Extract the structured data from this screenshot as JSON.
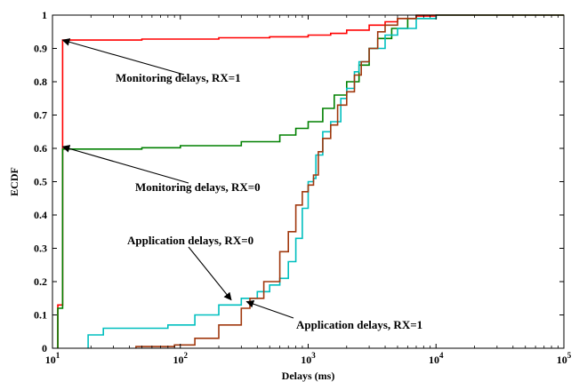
{
  "chart_data": {
    "type": "line",
    "xlabel": "Delays (ms)",
    "ylabel": "ECDF",
    "x_scale": "log",
    "xlim": [
      10,
      100000
    ],
    "ylim": [
      0,
      1
    ],
    "grid": false,
    "x_ticks": [
      {
        "value": 10,
        "base": "10",
        "exp": "1"
      },
      {
        "value": 100,
        "base": "10",
        "exp": "2"
      },
      {
        "value": 1000,
        "base": "10",
        "exp": "3"
      },
      {
        "value": 10000,
        "base": "10",
        "exp": "4"
      },
      {
        "value": 100000,
        "base": "10",
        "exp": "5"
      }
    ],
    "y_ticks": [
      "0",
      "0.1",
      "0.2",
      "0.3",
      "0.4",
      "0.5",
      "0.6",
      "0.7",
      "0.8",
      "0.9",
      "1"
    ],
    "series": [
      {
        "name": "Monitoring delays, RX=1",
        "color": "#ff0000",
        "points": [
          [
            11,
            0
          ],
          [
            11,
            0.13
          ],
          [
            12,
            0.13
          ],
          [
            12,
            0.925
          ],
          [
            50,
            0.928
          ],
          [
            200,
            0.932
          ],
          [
            500,
            0.935
          ],
          [
            1000,
            0.94
          ],
          [
            1500,
            0.945
          ],
          [
            2000,
            0.955
          ],
          [
            3000,
            0.97
          ],
          [
            4000,
            0.98
          ],
          [
            5000,
            0.99
          ],
          [
            7000,
            0.997
          ],
          [
            10000,
            1.0
          ],
          [
            100000,
            1.0
          ]
        ]
      },
      {
        "name": "Monitoring delays, RX=0",
        "color": "#008000",
        "points": [
          [
            11,
            0
          ],
          [
            11,
            0.12
          ],
          [
            12,
            0.12
          ],
          [
            12,
            0.598
          ],
          [
            50,
            0.602
          ],
          [
            100,
            0.608
          ],
          [
            300,
            0.62
          ],
          [
            600,
            0.64
          ],
          [
            800,
            0.66
          ],
          [
            1000,
            0.68
          ],
          [
            1300,
            0.72
          ],
          [
            1600,
            0.76
          ],
          [
            2000,
            0.8
          ],
          [
            2500,
            0.85
          ],
          [
            3000,
            0.9
          ],
          [
            3500,
            0.93
          ],
          [
            4500,
            0.96
          ],
          [
            6000,
            0.99
          ],
          [
            10000,
            1.0
          ],
          [
            100000,
            1.0
          ]
        ]
      },
      {
        "name": "Application delays, RX=0",
        "color": "#00bfbf",
        "points": [
          [
            19,
            0
          ],
          [
            19,
            0.04
          ],
          [
            25,
            0.04
          ],
          [
            25,
            0.06
          ],
          [
            80,
            0.07
          ],
          [
            130,
            0.1
          ],
          [
            200,
            0.13
          ],
          [
            300,
            0.15
          ],
          [
            400,
            0.17
          ],
          [
            500,
            0.19
          ],
          [
            600,
            0.21
          ],
          [
            700,
            0.26
          ],
          [
            800,
            0.33
          ],
          [
            900,
            0.42
          ],
          [
            1000,
            0.5
          ],
          [
            1100,
            0.51
          ],
          [
            1150,
            0.58
          ],
          [
            1300,
            0.65
          ],
          [
            1500,
            0.68
          ],
          [
            1800,
            0.75
          ],
          [
            2000,
            0.78
          ],
          [
            2300,
            0.83
          ],
          [
            2500,
            0.86
          ],
          [
            3000,
            0.9
          ],
          [
            4000,
            0.94
          ],
          [
            5000,
            0.96
          ],
          [
            7000,
            0.99
          ],
          [
            10000,
            1.0
          ],
          [
            100000,
            1.0
          ]
        ]
      },
      {
        "name": "Application delays, RX=1",
        "color": "#a0380e",
        "points": [
          [
            45,
            0
          ],
          [
            45,
            0.005
          ],
          [
            90,
            0.01
          ],
          [
            130,
            0.03
          ],
          [
            200,
            0.07
          ],
          [
            300,
            0.12
          ],
          [
            350,
            0.15
          ],
          [
            450,
            0.2
          ],
          [
            600,
            0.29
          ],
          [
            700,
            0.35
          ],
          [
            800,
            0.43
          ],
          [
            900,
            0.47
          ],
          [
            1000,
            0.49
          ],
          [
            1100,
            0.52
          ],
          [
            1200,
            0.59
          ],
          [
            1300,
            0.63
          ],
          [
            1500,
            0.67
          ],
          [
            1700,
            0.73
          ],
          [
            2000,
            0.77
          ],
          [
            2300,
            0.82
          ],
          [
            2600,
            0.86
          ],
          [
            3000,
            0.9
          ],
          [
            3500,
            0.95
          ],
          [
            4000,
            0.97
          ],
          [
            5000,
            0.99
          ],
          [
            7000,
            1.0
          ],
          [
            100000,
            1.0
          ]
        ]
      }
    ],
    "annotations": [
      {
        "text": "Monitoring delays, RX=1",
        "target": [
          12,
          0.925
        ]
      },
      {
        "text": "Monitoring delays, RX=0",
        "target": [
          12,
          0.605
        ]
      },
      {
        "text": "Application delays, RX=0",
        "target": [
          250,
          0.145
        ]
      },
      {
        "text": "Application delays, RX=1",
        "target": [
          330,
          0.14
        ]
      }
    ]
  }
}
